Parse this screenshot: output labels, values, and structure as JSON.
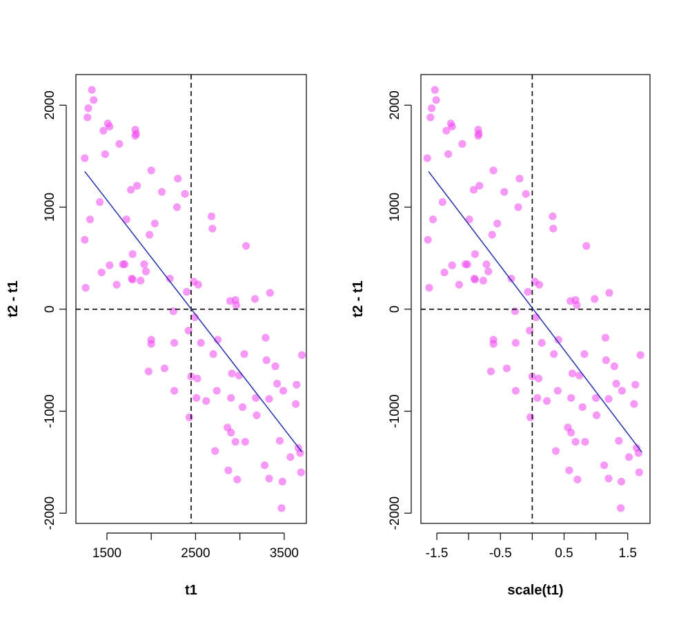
{
  "chart_data": [
    {
      "type": "scatter",
      "xlabel": "t1",
      "ylabel": "t2 - t1",
      "xlim": [
        1150,
        3750
      ],
      "ylim": [
        -2100,
        2300
      ],
      "xticks": [
        {
          "value": 1500,
          "label": "1500"
        },
        {
          "value": 2000,
          "label": ""
        },
        {
          "value": 2500,
          "label": "2500"
        },
        {
          "value": 3000,
          "label": ""
        },
        {
          "value": 3500,
          "label": "3500"
        }
      ],
      "yticks": [
        {
          "value": -2000,
          "label": "-2000"
        },
        {
          "value": -1000,
          "label": "-1000"
        },
        {
          "value": 0,
          "label": "0"
        },
        {
          "value": 1000,
          "label": "1000"
        },
        {
          "value": 2000,
          "label": "2000"
        }
      ],
      "point_color": "#ee44ee",
      "line_color": "#1f2fa8",
      "vline": 2450,
      "hline": 0,
      "fit": {
        "x": [
          1250,
          3700
        ],
        "y": [
          1350,
          -1400
        ]
      },
      "points": [
        [
          1250,
          1480
        ],
        [
          1250,
          680
        ],
        [
          1260,
          210
        ],
        [
          1280,
          1880
        ],
        [
          1290,
          1970
        ],
        [
          1310,
          880
        ],
        [
          1330,
          2150
        ],
        [
          1350,
          2050
        ],
        [
          1420,
          1050
        ],
        [
          1440,
          360
        ],
        [
          1460,
          1750
        ],
        [
          1480,
          1520
        ],
        [
          1510,
          1820
        ],
        [
          1530,
          1790
        ],
        [
          1530,
          430
        ],
        [
          1610,
          240
        ],
        [
          1640,
          1620
        ],
        [
          1680,
          440
        ],
        [
          1700,
          440
        ],
        [
          1720,
          880
        ],
        [
          1770,
          1170
        ],
        [
          1780,
          300
        ],
        [
          1790,
          290
        ],
        [
          1790,
          540
        ],
        [
          1820,
          1760
        ],
        [
          1820,
          1700
        ],
        [
          1830,
          1720
        ],
        [
          1840,
          1210
        ],
        [
          1880,
          280
        ],
        [
          1920,
          440
        ],
        [
          1940,
          370
        ],
        [
          1970,
          -610
        ],
        [
          1980,
          730
        ],
        [
          2000,
          1360
        ],
        [
          2000,
          -300
        ],
        [
          2000,
          -340
        ],
        [
          2040,
          840
        ],
        [
          2120,
          1150
        ],
        [
          2150,
          -580
        ],
        [
          2210,
          300
        ],
        [
          2250,
          -20
        ],
        [
          2260,
          -330
        ],
        [
          2260,
          -800
        ],
        [
          2290,
          1000
        ],
        [
          2300,
          1280
        ],
        [
          2380,
          1130
        ],
        [
          2400,
          170
        ],
        [
          2420,
          -210
        ],
        [
          2430,
          -1060
        ],
        [
          2450,
          -660
        ],
        [
          2480,
          270
        ],
        [
          2490,
          -80
        ],
        [
          2510,
          -870
        ],
        [
          2520,
          -680
        ],
        [
          2530,
          240
        ],
        [
          2560,
          -330
        ],
        [
          2620,
          -900
        ],
        [
          2680,
          910
        ],
        [
          2690,
          790
        ],
        [
          2700,
          -440
        ],
        [
          2720,
          -1390
        ],
        [
          2740,
          -800
        ],
        [
          2750,
          -300
        ],
        [
          2860,
          -1160
        ],
        [
          2870,
          -1580
        ],
        [
          2890,
          80
        ],
        [
          2900,
          -870
        ],
        [
          2900,
          -1210
        ],
        [
          2910,
          -630
        ],
        [
          2950,
          90
        ],
        [
          2950,
          -1300
        ],
        [
          2960,
          40
        ],
        [
          2970,
          -1670
        ],
        [
          2990,
          -650
        ],
        [
          3030,
          -960
        ],
        [
          3050,
          -440
        ],
        [
          3060,
          -1300
        ],
        [
          3070,
          620
        ],
        [
          3170,
          100
        ],
        [
          3180,
          -870
        ],
        [
          3190,
          -1040
        ],
        [
          3280,
          -1530
        ],
        [
          3290,
          -280
        ],
        [
          3300,
          -500
        ],
        [
          3330,
          -880
        ],
        [
          3330,
          -1660
        ],
        [
          3340,
          160
        ],
        [
          3400,
          -560
        ],
        [
          3420,
          -730
        ],
        [
          3450,
          -1290
        ],
        [
          3470,
          -1950
        ],
        [
          3480,
          -1690
        ],
        [
          3490,
          -800
        ],
        [
          3570,
          -1450
        ],
        [
          3630,
          -930
        ],
        [
          3640,
          -740
        ],
        [
          3660,
          -1360
        ],
        [
          3680,
          -1410
        ],
        [
          3690,
          -1600
        ],
        [
          3700,
          -450
        ]
      ]
    },
    {
      "type": "scatter",
      "xlabel": "scale(t1)",
      "ylabel": "t2 - t1",
      "xlim": [
        -1.75,
        1.85
      ],
      "ylim": [
        -2100,
        2300
      ],
      "xticks": [
        {
          "value": -1.5,
          "label": "-1.5"
        },
        {
          "value": -1.0,
          "label": ""
        },
        {
          "value": -0.5,
          "label": "-0.5"
        },
        {
          "value": 0.0,
          "label": ""
        },
        {
          "value": 0.5,
          "label": "0.5"
        },
        {
          "value": 1.0,
          "label": ""
        },
        {
          "value": 1.5,
          "label": "1.5"
        }
      ],
      "yticks": [
        {
          "value": -2000,
          "label": "-2000"
        },
        {
          "value": -1000,
          "label": "-1000"
        },
        {
          "value": 0,
          "label": "0"
        },
        {
          "value": 1000,
          "label": "1000"
        },
        {
          "value": 2000,
          "label": "2000"
        }
      ],
      "point_color": "#ee44ee",
      "line_color": "#1f2fa8",
      "vline": 0,
      "hline": 0,
      "fit": {
        "x": [
          -1.63,
          1.72
        ],
        "y": [
          1350,
          -1400
        ]
      },
      "points": [
        [
          -1.65,
          1480
        ],
        [
          -1.64,
          680
        ],
        [
          -1.62,
          210
        ],
        [
          -1.6,
          1880
        ],
        [
          -1.58,
          1970
        ],
        [
          -1.56,
          880
        ],
        [
          -1.53,
          2150
        ],
        [
          -1.51,
          2050
        ],
        [
          -1.41,
          1050
        ],
        [
          -1.38,
          360
        ],
        [
          -1.35,
          1750
        ],
        [
          -1.32,
          1520
        ],
        [
          -1.28,
          1820
        ],
        [
          -1.26,
          1790
        ],
        [
          -1.26,
          430
        ],
        [
          -1.15,
          240
        ],
        [
          -1.1,
          1620
        ],
        [
          -1.05,
          440
        ],
        [
          -1.02,
          440
        ],
        [
          -0.99,
          880
        ],
        [
          -0.92,
          1170
        ],
        [
          -0.91,
          300
        ],
        [
          -0.9,
          290
        ],
        [
          -0.9,
          540
        ],
        [
          -0.85,
          1760
        ],
        [
          -0.85,
          1700
        ],
        [
          -0.84,
          1720
        ],
        [
          -0.83,
          1210
        ],
        [
          -0.77,
          280
        ],
        [
          -0.72,
          440
        ],
        [
          -0.69,
          370
        ],
        [
          -0.65,
          -610
        ],
        [
          -0.63,
          730
        ],
        [
          -0.61,
          1360
        ],
        [
          -0.61,
          -300
        ],
        [
          -0.61,
          -340
        ],
        [
          -0.55,
          840
        ],
        [
          -0.44,
          1150
        ],
        [
          -0.4,
          -580
        ],
        [
          -0.33,
          300
        ],
        [
          -0.27,
          -20
        ],
        [
          -0.26,
          -330
        ],
        [
          -0.26,
          -800
        ],
        [
          -0.22,
          1000
        ],
        [
          -0.2,
          1280
        ],
        [
          -0.1,
          1130
        ],
        [
          -0.07,
          170
        ],
        [
          -0.04,
          -210
        ],
        [
          -0.03,
          -1060
        ],
        [
          0.0,
          -660
        ],
        [
          0.04,
          270
        ],
        [
          0.06,
          -80
        ],
        [
          0.08,
          -870
        ],
        [
          0.1,
          -680
        ],
        [
          0.11,
          240
        ],
        [
          0.15,
          -330
        ],
        [
          0.23,
          -900
        ],
        [
          0.32,
          910
        ],
        [
          0.33,
          790
        ],
        [
          0.34,
          -440
        ],
        [
          0.37,
          -1390
        ],
        [
          0.4,
          -800
        ],
        [
          0.41,
          -300
        ],
        [
          0.56,
          -1160
        ],
        [
          0.58,
          -1580
        ],
        [
          0.6,
          80
        ],
        [
          0.61,
          -870
        ],
        [
          0.61,
          -1210
        ],
        [
          0.63,
          -630
        ],
        [
          0.68,
          90
        ],
        [
          0.68,
          -1300
        ],
        [
          0.7,
          40
        ],
        [
          0.71,
          -1670
        ],
        [
          0.74,
          -650
        ],
        [
          0.79,
          -960
        ],
        [
          0.82,
          -440
        ],
        [
          0.83,
          -1300
        ],
        [
          0.85,
          620
        ],
        [
          0.98,
          100
        ],
        [
          1.0,
          -870
        ],
        [
          1.01,
          -1040
        ],
        [
          1.13,
          -1530
        ],
        [
          1.15,
          -280
        ],
        [
          1.16,
          -500
        ],
        [
          1.2,
          -880
        ],
        [
          1.2,
          -1660
        ],
        [
          1.21,
          160
        ],
        [
          1.29,
          -560
        ],
        [
          1.32,
          -730
        ],
        [
          1.36,
          -1290
        ],
        [
          1.39,
          -1950
        ],
        [
          1.4,
          -1690
        ],
        [
          1.41,
          -800
        ],
        [
          1.52,
          -1450
        ],
        [
          1.6,
          -930
        ],
        [
          1.62,
          -740
        ],
        [
          1.64,
          -1360
        ],
        [
          1.67,
          -1410
        ],
        [
          1.68,
          -1600
        ],
        [
          1.7,
          -450
        ]
      ]
    }
  ]
}
